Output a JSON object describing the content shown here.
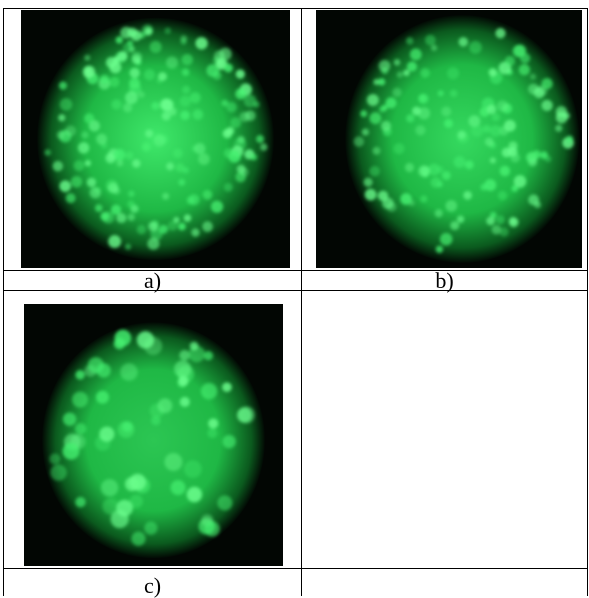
{
  "table": {
    "captions": [
      "a)",
      "b)",
      "c)"
    ]
  }
}
